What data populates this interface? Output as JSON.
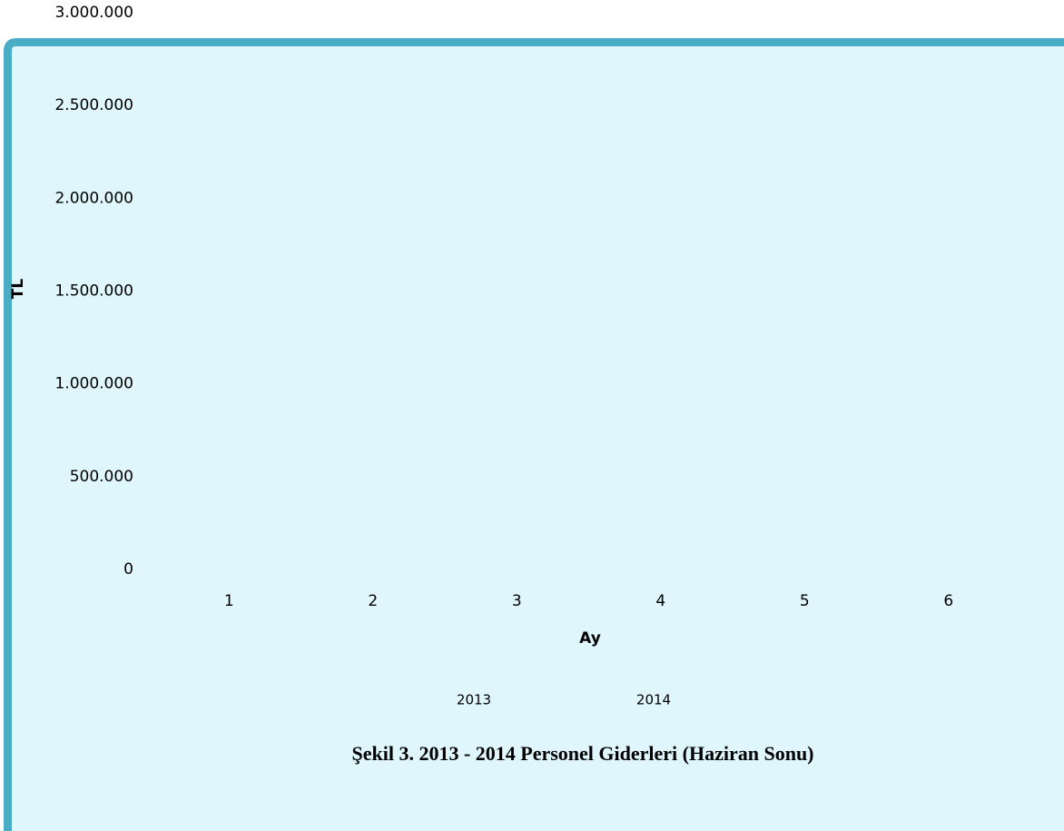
{
  "chart_data": {
    "type": "bar",
    "caption": "Şekil 3. 2013 - 2014 Personel Giderleri (Haziran Sonu)",
    "x_label": "Ay",
    "y_label": "TL",
    "categories": [
      "1",
      "2",
      "3",
      "4",
      "5",
      "6"
    ],
    "series": [
      {
        "name": "2013",
        "values": [
          null,
          null,
          null,
          null,
          null,
          null
        ]
      },
      {
        "name": "2014",
        "values": [
          null,
          null,
          null,
          null,
          null,
          null
        ]
      }
    ],
    "ylim": [
      0,
      3000000
    ],
    "yticks": [
      0,
      {
        "value": 500000,
        "label": "500.000"
      },
      {
        "value": 1000000,
        "label": "1.000.000"
      },
      {
        "value": 1500000,
        "label": "1.500.000"
      },
      {
        "value": 2000000,
        "label": "2.000.000"
      },
      {
        "value": 2500000,
        "label": "2.500.000"
      },
      {
        "value": 3000000,
        "label": "3.000.000"
      }
    ],
    "grid": false
  }
}
